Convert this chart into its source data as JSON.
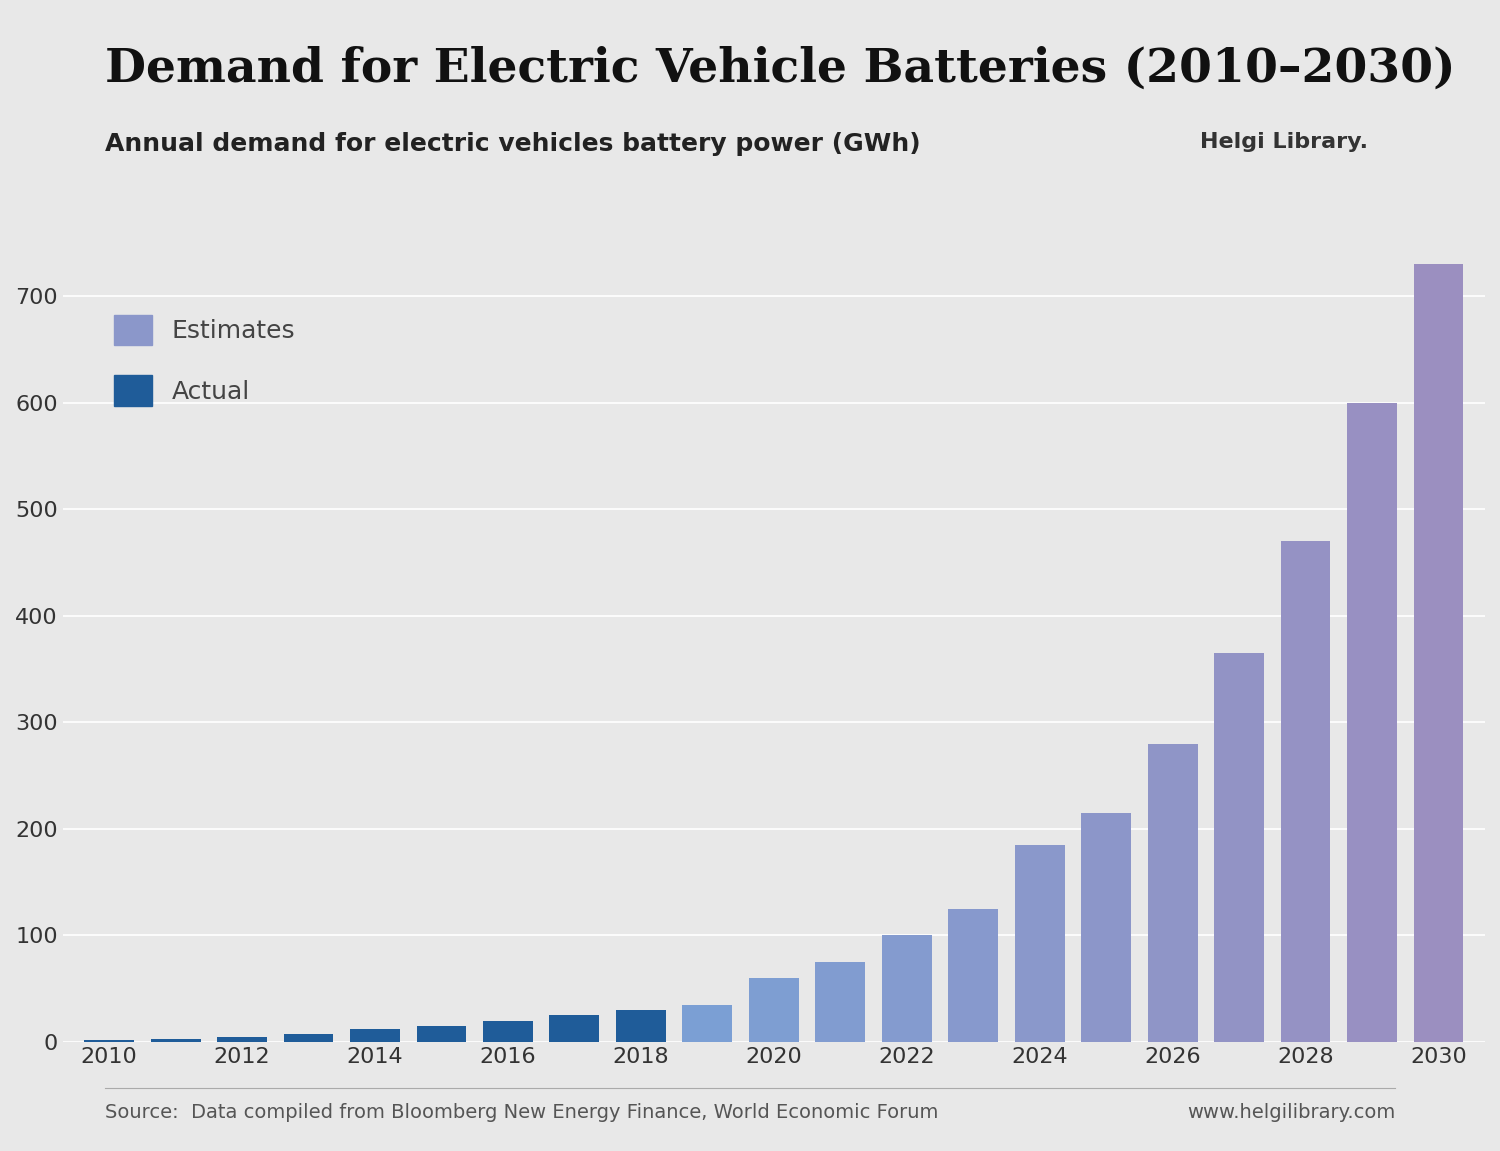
{
  "title": "Demand for Electric Vehicle Batteries (2010–2030)",
  "subtitle": "Annual demand for electric vehicles battery power (GWh)",
  "source_text": "Source:  Data compiled from Bloomberg New Energy Finance, World Economic Forum",
  "source_right": "www.helgilibrary.com",
  "years": [
    2010,
    2011,
    2012,
    2013,
    2014,
    2015,
    2016,
    2017,
    2018,
    2019,
    2020,
    2021,
    2022,
    2023,
    2024,
    2025,
    2026,
    2027,
    2028,
    2029,
    2030
  ],
  "values": [
    2,
    3,
    5,
    8,
    12,
    15,
    20,
    25,
    30,
    35,
    60,
    75,
    100,
    125,
    185,
    215,
    280,
    365,
    470,
    600,
    730
  ],
  "actual_cutoff_year": 2018,
  "actual_color": "#1f5c99",
  "estimate_color_left": "#7b9fd4",
  "estimate_color_right": "#9b8fc0",
  "background_color": "#e8e8e8",
  "plot_bg_color": "#e8e8e8",
  "ylim": [
    0,
    780
  ],
  "yticks": [
    0,
    100,
    200,
    300,
    400,
    500,
    600,
    700
  ],
  "xtick_years": [
    2010,
    2012,
    2014,
    2016,
    2018,
    2020,
    2022,
    2024,
    2026,
    2028,
    2030
  ],
  "title_fontsize": 34,
  "subtitle_fontsize": 18,
  "tick_fontsize": 16,
  "legend_fontsize": 18,
  "source_fontsize": 14
}
